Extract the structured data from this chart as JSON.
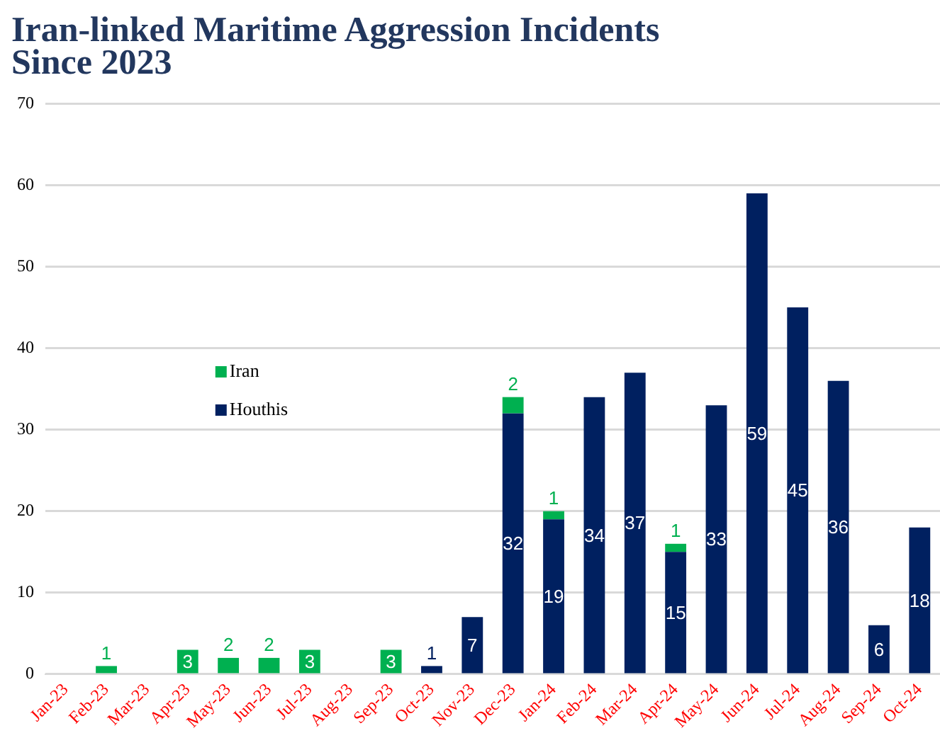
{
  "chart_data": {
    "type": "bar",
    "title": "Iran-linked Maritime Aggression Incidents Since 2023",
    "categories": [
      "Jan-23",
      "Feb-23",
      "Mar-23",
      "Apr-23",
      "May-23",
      "Jun-23",
      "Jul-23",
      "Aug-23",
      "Sep-23",
      "Oct-23",
      "Nov-23",
      "Dec-23",
      "Jan-24",
      "Feb-24",
      "Mar-24",
      "Apr-24",
      "May-24",
      "Jun-24",
      "Jul-24",
      "Aug-24",
      "Sep-24",
      "Oct-24"
    ],
    "series": [
      {
        "name": "Houthis",
        "color": "#002060",
        "values": [
          null,
          null,
          null,
          null,
          null,
          null,
          null,
          null,
          null,
          1,
          7,
          32,
          19,
          34,
          37,
          15,
          33,
          59,
          45,
          36,
          6,
          18
        ]
      },
      {
        "name": "Iran",
        "color": "#00b050",
        "values": [
          null,
          1,
          null,
          3,
          2,
          2,
          3,
          null,
          3,
          null,
          null,
          2,
          1,
          null,
          null,
          1,
          null,
          null,
          null,
          null,
          null,
          null
        ]
      }
    ],
    "stacked": true,
    "ylim": [
      0,
      70
    ],
    "yticks": [
      0,
      10,
      20,
      30,
      40,
      50,
      60,
      70
    ],
    "grid": "y",
    "legend": "left",
    "data_labels": true
  }
}
